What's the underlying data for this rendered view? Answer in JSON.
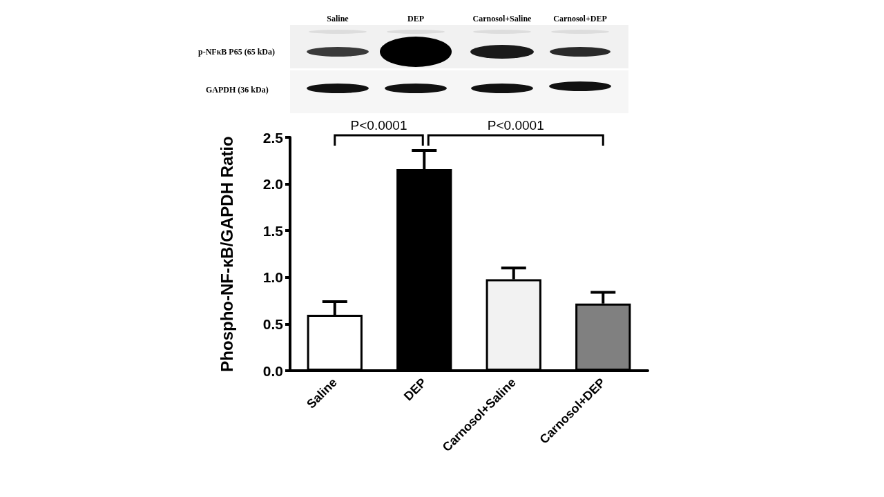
{
  "chart_data": {
    "type": "bar",
    "ylabel": "Phospho-NF-κB/GAPDH Ratio",
    "categories": [
      "Saline",
      "DEP",
      "Carnosol+Saline",
      "Carnosol+DEP"
    ],
    "values": [
      0.6,
      2.16,
      0.98,
      0.72
    ],
    "colors": [
      "#ffffff",
      "#000000",
      "#f2f2f2",
      "#808080"
    ],
    "errors": [
      [
        0.6,
        0.74
      ],
      [
        2.16,
        2.36
      ],
      [
        0.98,
        1.1
      ],
      [
        0.72,
        0.84
      ]
    ],
    "ylim": [
      0,
      2.5
    ],
    "yticks": [
      {
        "value": 0,
        "label": "0.0"
      },
      0.5,
      {
        "value": 1,
        "label": "1.0"
      },
      1.5,
      {
        "value": 2,
        "label": "2.0"
      },
      2.5
    ],
    "annotations": [
      "P<0.0001",
      "P<0.0001",
      "p-NFκB P65 (65 kDa)",
      "GAPDH (36 kDa)"
    ]
  }
}
